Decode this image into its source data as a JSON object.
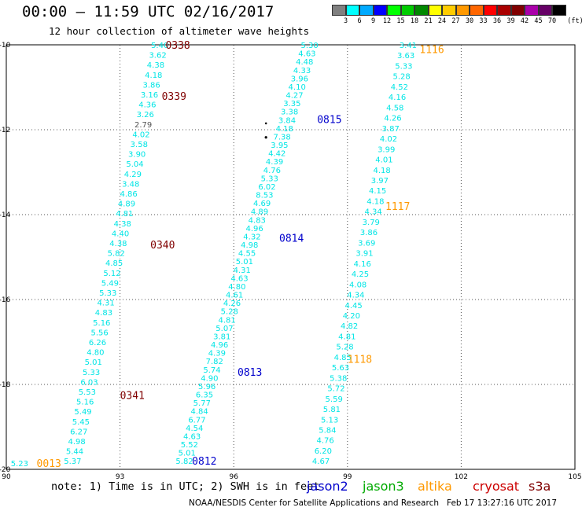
{
  "title": "00:00 – 11:59 UTC 02/16/2017",
  "subtitle": "12 hour collection of altimeter wave heights",
  "colorbar": {
    "unit": "(ft)",
    "labels": [
      "3",
      "6",
      "9",
      "12",
      "15",
      "18",
      "21",
      "24",
      "27",
      "30",
      "33",
      "36",
      "39",
      "42",
      "45",
      "70"
    ],
    "colors": [
      "#808080",
      "#00ffff",
      "#00aaff",
      "#0000ff",
      "#00ff00",
      "#00cc00",
      "#008800",
      "#ffff00",
      "#ffcc00",
      "#ff9900",
      "#ff6600",
      "#ff0000",
      "#aa0000",
      "#800000",
      "#aa00aa",
      "#660066",
      "#000000"
    ]
  },
  "axes": {
    "lon_min": 90,
    "lon_max": 105,
    "lat_min": -20,
    "lat_max": -10,
    "lon_ticks": [
      "90",
      "93",
      "96",
      "99",
      "102",
      "105"
    ],
    "lat_ticks": [
      "-10",
      "-12",
      "-14",
      "-16",
      "-18",
      "-20"
    ]
  },
  "chart_data": {
    "type": "scatter",
    "passes": [
      {
        "satellite": "cryosat",
        "time": "0338",
        "lon": 94.2,
        "lat": -10.0
      },
      {
        "satellite": "cryosat",
        "time": "0339",
        "lon": 94.1,
        "lat": -11.2
      },
      {
        "satellite": "cryosat",
        "time": "0340",
        "lon": 93.8,
        "lat": -14.7
      },
      {
        "satellite": "cryosat",
        "time": "0341",
        "lon": 93.0,
        "lat": -18.25
      },
      {
        "satellite": "altika",
        "time": "0013",
        "lon": 90.8,
        "lat": -19.85
      },
      {
        "satellite": "jason2",
        "time": "0815",
        "lon": 98.2,
        "lat": -11.75
      },
      {
        "satellite": "jason2",
        "time": "0814",
        "lon": 97.2,
        "lat": -14.55
      },
      {
        "satellite": "jason2",
        "time": "0813",
        "lon": 96.1,
        "lat": -17.7
      },
      {
        "satellite": "jason2",
        "time": "0812",
        "lon": 94.9,
        "lat": -19.8
      },
      {
        "satellite": "altika",
        "time": "1116",
        "lon": 100.9,
        "lat": -10.1
      },
      {
        "satellite": "altika",
        "time": "1117",
        "lon": 100.0,
        "lat": -13.8
      },
      {
        "satellite": "altika",
        "time": "1118",
        "lon": 99.0,
        "lat": -17.4
      }
    ],
    "tracks": [
      {
        "id": "track-a",
        "lon_start": 94.05,
        "lat_start": -10.0,
        "lon_end": 91.75,
        "lat_end": -19.8,
        "values": [
          "5.40",
          "3.62",
          "4.38",
          "4.18",
          "3.86",
          "3.16",
          "4.36",
          "3.26",
          "2.79",
          "4.02",
          "3.58",
          "3.90",
          "5.04",
          "4.29",
          "3.48",
          "4.86",
          "4.89",
          "4.81",
          "4.38",
          "4.40",
          "4.38",
          "5.82",
          "4.85",
          "5.12",
          "5.49",
          "5.33",
          "4.31",
          "4.83",
          "5.16",
          "5.56",
          "6.26",
          "4.80",
          "5.01",
          "5.33",
          "6.03",
          "5.53",
          "5.16",
          "5.49",
          "5.45",
          "6.27",
          "4.98",
          "5.44",
          "5.37"
        ]
      },
      {
        "id": "track-b",
        "lon_start": 98.0,
        "lat_start": -10.0,
        "lon_end": 94.7,
        "lat_end": -19.8,
        "values": [
          "5.30",
          "4.63",
          "4.48",
          "4.33",
          "3.96",
          "4.10",
          "4.27",
          "3.35",
          "3.38",
          "3.84",
          "4.18",
          "7.38",
          "3.95",
          "4.42",
          "4.39",
          "4.76",
          "5.33",
          "6.02",
          "8.53",
          "4.69",
          "4.89",
          "4.83",
          "4.96",
          "4.32",
          "4.98",
          "4.55",
          "5.01",
          "4.31",
          "4.63",
          "4.80",
          "4.61",
          "4.26",
          "5.28",
          "4.81",
          "5.07",
          "3.81",
          "4.96",
          "4.39",
          "7.82",
          "5.74",
          "4.90",
          "5.96",
          "6.35",
          "5.77",
          "4.84",
          "6.77",
          "4.54",
          "4.63",
          "5.52",
          "5.01",
          "5.82"
        ]
      },
      {
        "id": "track-c",
        "lon_start": 100.6,
        "lat_start": -10.0,
        "lon_end": 98.3,
        "lat_end": -19.8,
        "values": [
          "3.41",
          "3.63",
          "5.33",
          "5.28",
          "4.52",
          "4.16",
          "4.58",
          "4.26",
          "3.87",
          "4.02",
          "3.99",
          "4.01",
          "4.18",
          "3.97",
          "4.15",
          "4.18",
          "4.34",
          "3.79",
          "3.86",
          "3.69",
          "3.91",
          "4.16",
          "4.25",
          "4.08",
          "4.34",
          "4.45",
          "4.20",
          "4.82",
          "4.81",
          "5.28",
          "4.85",
          "5.63",
          "5.38",
          "5.72",
          "5.59",
          "5.81",
          "5.13",
          "5.84",
          "4.76",
          "6.20",
          "4.67"
        ]
      }
    ],
    "edge_values": [
      {
        "value": "5.23",
        "lon": 90.35,
        "lat": -19.85
      }
    ]
  },
  "legend": {
    "note": "note: 1) Time is in UTC; 2) SWH is in feet",
    "satellites": [
      {
        "name": "jason2",
        "color": "#0000cc"
      },
      {
        "name": "jason3",
        "color": "#00aa00"
      },
      {
        "name": "altika",
        "color": "#ff9900"
      },
      {
        "name": "cryosat",
        "color": "#cc0000"
      },
      {
        "name": "s3a",
        "color": "#800000"
      }
    ]
  },
  "credit": "NOAA/NESDIS Center for Satellite Applications and Research   Feb 17 13:27:16 UTC 2017",
  "colors": {
    "track_value": "#00e5e5",
    "cryosat_time": "#800000",
    "jason2_time": "#0000cc",
    "altika_time": "#ff9900"
  }
}
